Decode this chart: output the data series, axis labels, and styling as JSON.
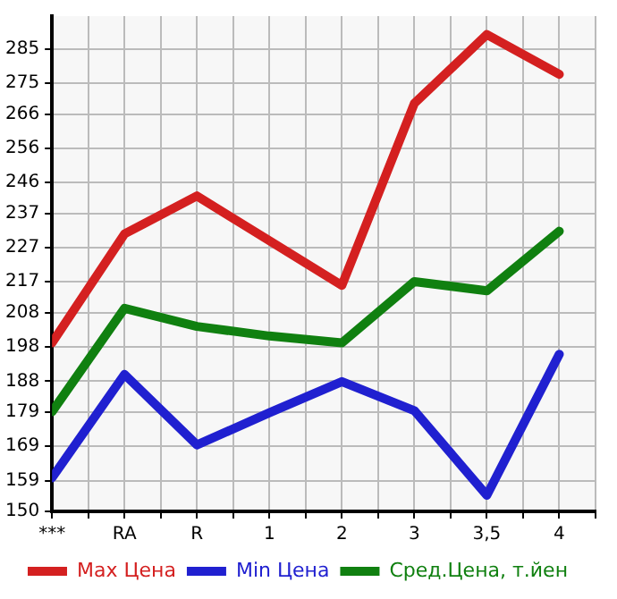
{
  "chart_data": {
    "type": "line",
    "categories": [
      "***",
      "RA",
      "R",
      "1",
      "2",
      "3",
      "3,5",
      "4"
    ],
    "series": [
      {
        "name": "Max Цена",
        "color": "#d42020",
        "values": [
          199.2,
          231.0,
          242.1,
          229.0,
          216.0,
          269.1,
          289.2,
          277.6
        ]
      },
      {
        "name": "Min Цена",
        "color": "#2020d0",
        "values": [
          159.8,
          190.0,
          169.4,
          178.8,
          187.9,
          179.4,
          154.7,
          195.9
        ]
      },
      {
        "name": "Сред.Цена, т.йен",
        "color": "#108010",
        "values": [
          179.1,
          209.3,
          204.0,
          201.2,
          199.2,
          217.1,
          214.4,
          231.8
        ]
      }
    ],
    "ylim": [
      150,
      294.6
    ],
    "yticks": [
      150,
      159,
      169,
      179,
      188,
      198,
      208,
      217,
      227,
      237,
      246,
      256,
      266,
      275,
      285
    ],
    "grid": true,
    "legend": "bottom",
    "marker": "none",
    "line_style": "solid"
  }
}
